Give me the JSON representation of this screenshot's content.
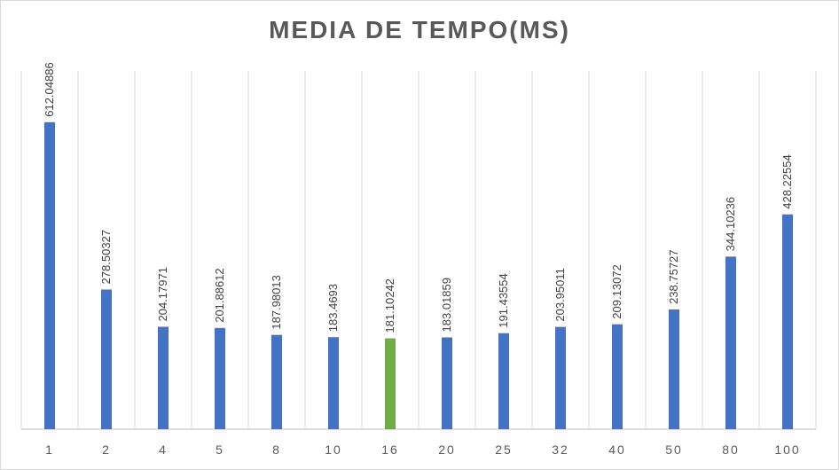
{
  "chart_data": {
    "type": "bar",
    "title": "MEDIA DE TEMPO(MS)",
    "xlabel": "",
    "ylabel": "",
    "categories": [
      "1",
      "2",
      "4",
      "5",
      "8",
      "10",
      "16",
      "20",
      "25",
      "32",
      "40",
      "50",
      "80",
      "100"
    ],
    "values": [
      612.04886,
      278.50327,
      204.17971,
      201.88612,
      187.98013,
      183.4693,
      181.10242,
      183.01859,
      191.43554,
      203.95011,
      209.13072,
      238.75727,
      344.10236,
      428.22554
    ],
    "data_labels": [
      "612.04886",
      "278.50327",
      "204.17971",
      "201.88612",
      "187.98013",
      "183.4693",
      "181.10242",
      "183.01859",
      "191.43554",
      "203.95011",
      "209.13072",
      "238.75727",
      "344.10236",
      "428.22554"
    ],
    "highlight_index": 6,
    "colors": {
      "default": "#4472c4",
      "highlight": "#70ad47",
      "grid": "#d9d9d9",
      "axis": "#bfbfbf"
    },
    "ylim": [
      0,
      700
    ],
    "grid": "vertical",
    "legend": "none"
  }
}
